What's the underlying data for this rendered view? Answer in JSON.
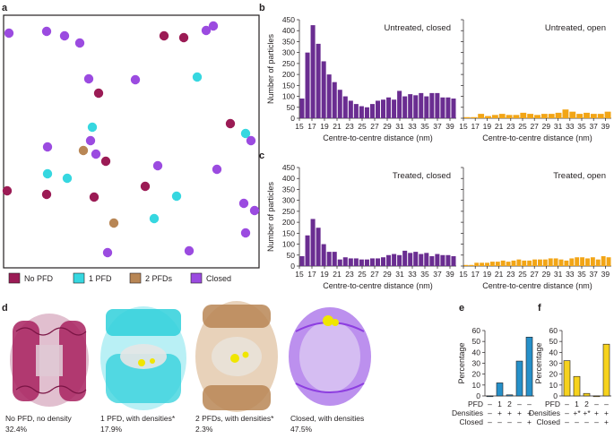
{
  "panel_labels": {
    "a": "a",
    "b": "b",
    "c": "c",
    "d": "d",
    "e": "e",
    "f": "f"
  },
  "legend": [
    {
      "label": "No PFD",
      "color": "#9b1b55"
    },
    {
      "label": "1 PFD",
      "color": "#36d7e0"
    },
    {
      "label": "2 PFDs",
      "color": "#b88655"
    },
    {
      "label": "Closed",
      "color": "#9b4be0"
    }
  ],
  "colors": {
    "closed": "#6a2d91",
    "open": "#f2a516",
    "e_bar": "#2690c9",
    "f_bar": "#f6d21d",
    "no_pfd": "#9b1b55",
    "one_pfd": "#36d7e0",
    "two_pfd": "#b88655",
    "closed_part": "#9b4be0"
  },
  "hist_axes": {
    "ylabel": "Number of particles",
    "xlabel": "Centre-to-centre distance (nm)",
    "yticks": [
      "0",
      "50",
      "100",
      "150",
      "200",
      "250",
      "300",
      "350",
      "400",
      "450"
    ],
    "xticks": [
      "15",
      "17",
      "19",
      "21",
      "23",
      "25",
      "27",
      "29",
      "31",
      "33",
      "35",
      "37",
      "39"
    ]
  },
  "chart_data": [
    {
      "type": "bar",
      "panel": "b",
      "title": "Untreated, closed",
      "xlabel": "Centre-to-centre distance (nm)",
      "ylabel": "Number of particles",
      "ylim": [
        0,
        450
      ],
      "x_range": [
        15,
        40
      ],
      "values": [
        90,
        300,
        425,
        340,
        260,
        200,
        165,
        130,
        100,
        80,
        65,
        55,
        50,
        65,
        80,
        85,
        95,
        85,
        125,
        100,
        110,
        105,
        115,
        100,
        115,
        115,
        95,
        95,
        90
      ]
    },
    {
      "type": "bar",
      "panel": "b",
      "title": "Untreated, open",
      "xlabel": "Centre-to-centre distance (nm)",
      "ylabel": "",
      "ylim": [
        0,
        450
      ],
      "x_range": [
        15,
        40
      ],
      "values": [
        5,
        5,
        20,
        10,
        15,
        20,
        15,
        15,
        25,
        20,
        15,
        20,
        20,
        25,
        40,
        30,
        20,
        25,
        20,
        20,
        30
      ]
    },
    {
      "type": "bar",
      "panel": "c",
      "title": "Treated, closed",
      "xlabel": "Centre-to-centre distance (nm)",
      "ylabel": "Number of particles",
      "ylim": [
        0,
        450
      ],
      "x_range": [
        15,
        40
      ],
      "values": [
        45,
        140,
        215,
        175,
        100,
        65,
        65,
        30,
        40,
        35,
        35,
        30,
        30,
        35,
        35,
        40,
        50,
        55,
        50,
        70,
        60,
        65,
        55,
        60,
        45,
        55,
        50,
        50,
        45
      ]
    },
    {
      "type": "bar",
      "panel": "c",
      "title": "Treated, open",
      "xlabel": "Centre-to-centre distance (nm)",
      "ylabel": "",
      "ylim": [
        0,
        450
      ],
      "x_range": [
        15,
        40
      ],
      "values": [
        5,
        5,
        15,
        15,
        15,
        20,
        20,
        25,
        20,
        25,
        30,
        25,
        25,
        30,
        30,
        30,
        35,
        35,
        30,
        25,
        35,
        40,
        40,
        35,
        40,
        30,
        45,
        40
      ]
    },
    {
      "type": "bar",
      "panel": "e",
      "ylabel": "Percentage",
      "ylim": [
        0,
        60
      ],
      "yticks": [
        "0",
        "10",
        "20",
        "30",
        "40",
        "50",
        "60"
      ],
      "values": [
        0,
        12,
        1,
        32,
        54
      ],
      "rows": [
        {
          "label": "PFD",
          "cells": [
            "–",
            "1",
            "2",
            "–",
            "–"
          ]
        },
        {
          "label": "Densities",
          "cells": [
            "–",
            "+",
            "+",
            "+",
            "+"
          ]
        },
        {
          "label": "Closed",
          "cells": [
            "–",
            "–",
            "–",
            "–",
            "+"
          ]
        }
      ]
    },
    {
      "type": "bar",
      "panel": "f",
      "ylabel": "Percentage",
      "ylim": [
        0,
        60
      ],
      "yticks": [
        "0",
        "10",
        "20",
        "30",
        "40",
        "50",
        "60"
      ],
      "values": [
        32.4,
        17.9,
        2.3,
        0,
        47.5
      ],
      "rows": [
        {
          "label": "PFD",
          "cells": [
            "–",
            "1",
            "2",
            "–",
            "–"
          ]
        },
        {
          "label": "Densities",
          "cells": [
            "–",
            "+*",
            "+*",
            "+",
            "+"
          ]
        },
        {
          "label": "Closed",
          "cells": [
            "–",
            "–",
            "–",
            "–",
            "+"
          ]
        }
      ]
    }
  ],
  "captions": [
    {
      "line1": "No PFD, no density",
      "line2": "32.4%"
    },
    {
      "line1": "1 PFD, with densities*",
      "line2": "17.9%"
    },
    {
      "line1": "2 PFDs, with densities*",
      "line2": "2.3%"
    },
    {
      "line1": "Closed, with densities",
      "line2": "47.5%"
    }
  ]
}
